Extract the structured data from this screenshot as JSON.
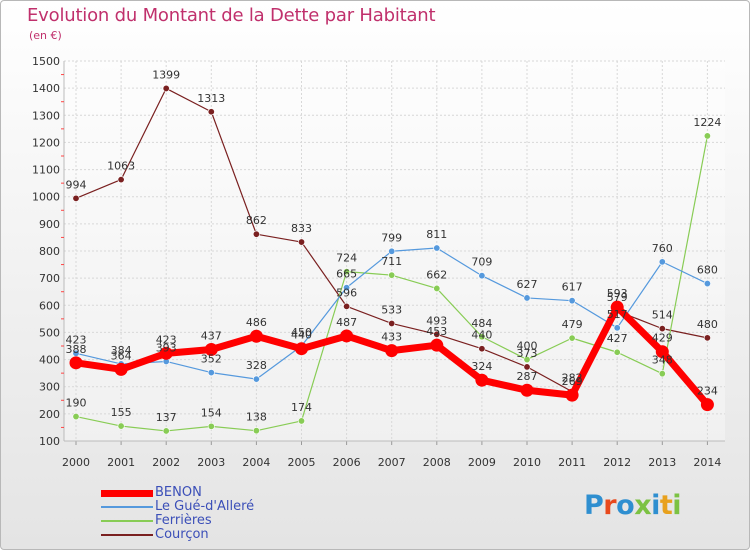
{
  "title": "Evolution du Montant de la Dette par Habitant",
  "unit": "(en €)",
  "logo": {
    "text": "Proxiti",
    "colors": [
      "#2f8fd0",
      "#e8491d",
      "#2f8fd0",
      "#7cc243",
      "#2f8fd0",
      "#e8a11d",
      "#7cc243"
    ]
  },
  "chart_data": {
    "type": "line",
    "title": "Evolution du Montant de la Dette par Habitant",
    "ylabel": "(en €)",
    "xlabel": "",
    "ylim": [
      100,
      1500
    ],
    "yticks": [
      "100",
      "200",
      "300",
      "400",
      "500",
      "600",
      "700",
      "800",
      "900",
      "1000",
      "1100",
      "1200",
      "1300",
      "1400",
      "1500"
    ],
    "x": [
      "2000",
      "2001",
      "2002",
      "2003",
      "2004",
      "2005",
      "2006",
      "2007",
      "2008",
      "2009",
      "2010",
      "2011",
      "2012",
      "2013",
      "2014"
    ],
    "grid": true,
    "legend_position": "bottom-left",
    "series": [
      {
        "name": "BENON",
        "color": "#ff0000",
        "values": [
          388,
          364,
          423,
          437,
          486,
          440,
          487,
          433,
          453,
          324,
          287,
          269,
          593,
          429,
          234
        ],
        "labels": [
          "388",
          "364",
          "423",
          "437",
          "486",
          "440",
          "487",
          "433",
          "453",
          "324",
          "287",
          "269",
          "593",
          "429",
          "234"
        ]
      },
      {
        "name": "Le Gué-d'Alleré",
        "color": "#5599dd",
        "values": [
          423,
          384,
          393,
          352,
          328,
          450,
          665,
          799,
          811,
          709,
          627,
          617,
          517,
          760,
          680
        ],
        "labels": [
          "423",
          "384",
          "393",
          "352",
          "328",
          "450",
          "665",
          "799",
          "811",
          "709",
          "627",
          "617",
          "517",
          "760",
          "680"
        ]
      },
      {
        "name": "Ferrières",
        "color": "#88cc55",
        "values": [
          190,
          155,
          137,
          154,
          138,
          174,
          724,
          711,
          662,
          484,
          400,
          479,
          427,
          348,
          1224
        ],
        "labels": [
          "190",
          "155",
          "137",
          "154",
          "138",
          "174",
          "724",
          "711",
          "662",
          "484",
          "400",
          "479",
          "427",
          "348",
          "1224"
        ]
      },
      {
        "name": "Courçon",
        "color": "#7a2020",
        "values": [
          994,
          1063,
          1399,
          1313,
          862,
          833,
          596,
          533,
          493,
          440,
          373,
          282,
          579,
          514,
          480
        ],
        "labels": [
          "994",
          "1063",
          "1399",
          "1313",
          "862",
          "833",
          "596",
          "533",
          "493",
          "440",
          "373",
          "282",
          "579",
          "514",
          "480"
        ]
      }
    ]
  }
}
